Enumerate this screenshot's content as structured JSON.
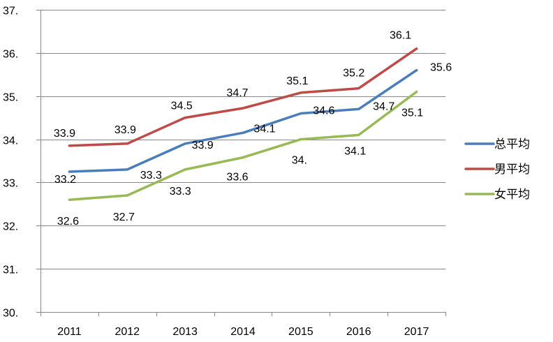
{
  "chart_data": {
    "type": "line",
    "title": "",
    "xlabel": "",
    "ylabel": "",
    "categories": [
      "2011",
      "2012",
      "2013",
      "2014",
      "2015",
      "2016",
      "2017"
    ],
    "ylim": [
      30,
      37
    ],
    "y_ticks": [
      30,
      31,
      32,
      33,
      34,
      35,
      36,
      37
    ],
    "y_tick_labels": [
      "30.",
      "31.",
      "32.",
      "33.",
      "34.",
      "35.",
      "36.",
      "37."
    ],
    "grid": true,
    "legend_position": "right",
    "series": [
      {
        "name": "总平均",
        "color": "#4a7ebb",
        "values": [
          33.25,
          33.3,
          33.9,
          34.15,
          34.6,
          34.7,
          35.6
        ],
        "labels": [
          "33.2",
          "33.3",
          "33.9",
          "34.1",
          "34.6",
          "34.7",
          "35.6"
        ]
      },
      {
        "name": "男平均",
        "color": "#be4b48",
        "values": [
          33.85,
          33.9,
          34.5,
          34.72,
          35.08,
          35.18,
          36.1
        ],
        "labels": [
          "33.9",
          "33.9",
          "34.5",
          "34.7",
          "35.1",
          "35.2",
          "36.1"
        ]
      },
      {
        "name": "女平均",
        "color": "#98b954",
        "values": [
          32.6,
          32.7,
          33.3,
          33.58,
          34.0,
          34.1,
          35.1
        ],
        "labels": [
          "32.6",
          "32.7",
          "33.3",
          "33.6",
          "34.",
          "34.1",
          "35.1"
        ]
      }
    ]
  }
}
